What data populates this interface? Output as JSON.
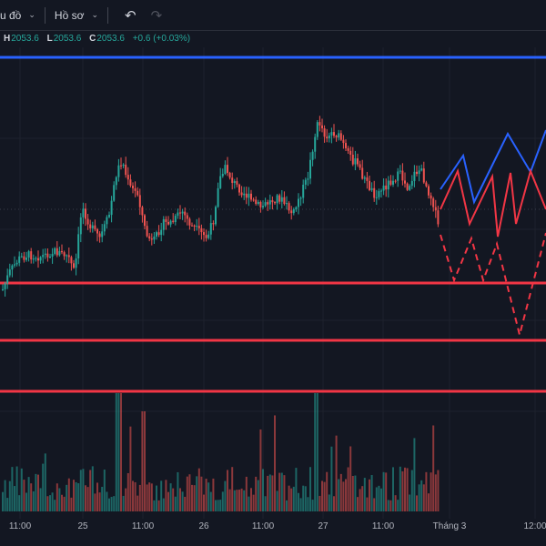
{
  "toolbar": {
    "chart_menu_label": "u đồ",
    "profile_label": "Hồ sơ",
    "undo_icon": "undo-icon",
    "redo_icon": "redo-icon"
  },
  "legend": {
    "h_key": "H",
    "h_value": "2053.6",
    "l_key": "L",
    "l_value": "2053.6",
    "c_key": "C",
    "c_value": "2053.6",
    "change": "+0.6 (+0.03%)"
  },
  "time_axis": [
    "11:00",
    "25",
    "11:00",
    "26",
    "11:00",
    "27",
    "11:00",
    "Tháng 3",
    "12:00"
  ],
  "colors": {
    "background": "#131722",
    "up": "#26a69a",
    "down": "#ef5350",
    "blue_line": "#2962ff",
    "red_line": "#f23645",
    "projection_blue": "#2962ff",
    "projection_red": "#f23645"
  },
  "chart_data": {
    "type": "candlestick",
    "series": [
      {
        "name": "",
        "horizontal_levels": [
          "blue",
          "red",
          "red",
          "red"
        ]
      }
    ]
  }
}
